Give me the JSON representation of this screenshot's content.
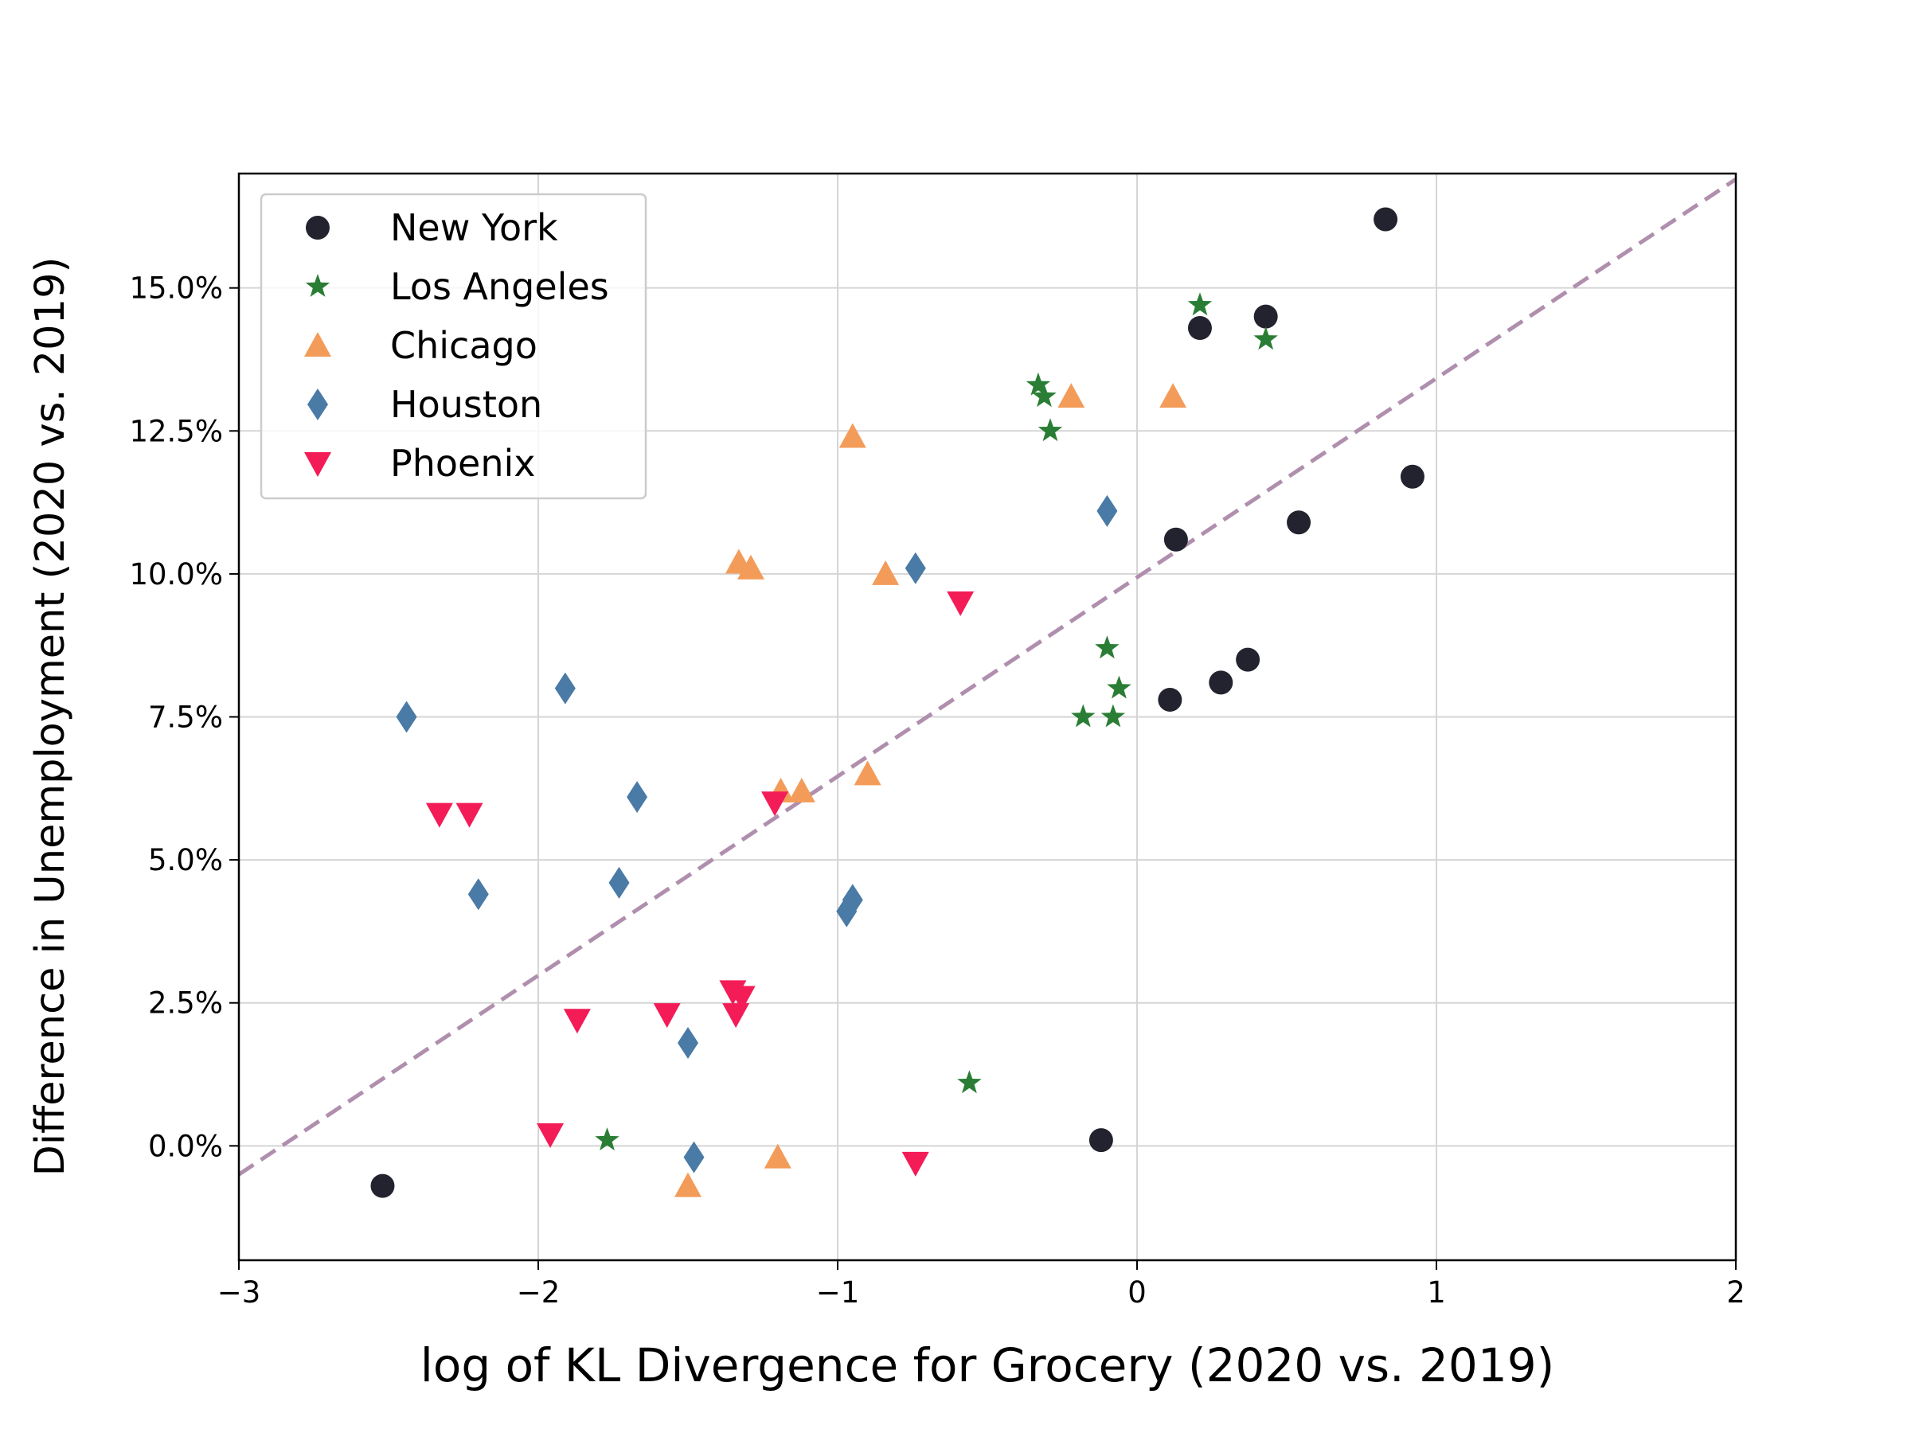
{
  "chart_data": {
    "type": "scatter",
    "title": "",
    "xlabel": "log of KL Divergence for Grocery (2020 vs. 2019)",
    "ylabel": "Difference in Unemployment (2020 vs. 2019)",
    "xlim": [
      -3,
      2
    ],
    "ylim": [
      -2.0,
      17.0
    ],
    "x_ticks": [
      -3,
      -2,
      -1,
      0,
      1,
      2
    ],
    "x_tick_labels": [
      "−3",
      "−2",
      "−1",
      "0",
      "1",
      "2"
    ],
    "y_ticks": [
      0,
      2.5,
      5,
      7.5,
      10,
      12.5,
      15
    ],
    "y_tick_labels": [
      "0.0%",
      "2.5%",
      "5.0%",
      "7.5%",
      "10.0%",
      "12.5%",
      "15.0%"
    ],
    "grid": true,
    "legend_position": "top-left",
    "fit_line": {
      "x": [
        -3,
        2
      ],
      "y": [
        -0.5,
        16.9
      ],
      "color": "#b08fae",
      "style": "dashed"
    },
    "series": [
      {
        "name": "New York",
        "marker": "circle",
        "color": "#22232e",
        "points": [
          [
            0.83,
            16.2
          ],
          [
            0.43,
            14.5
          ],
          [
            0.21,
            14.3
          ],
          [
            0.92,
            11.7
          ],
          [
            0.54,
            10.9
          ],
          [
            0.13,
            10.6
          ],
          [
            0.37,
            8.5
          ],
          [
            0.28,
            8.1
          ],
          [
            0.11,
            7.8
          ],
          [
            -0.12,
            0.1
          ],
          [
            -2.52,
            -0.7
          ]
        ]
      },
      {
        "name": "Los Angeles",
        "marker": "star",
        "color": "#2a7d34",
        "points": [
          [
            0.21,
            14.7
          ],
          [
            0.43,
            14.1
          ],
          [
            -0.33,
            13.3
          ],
          [
            -0.31,
            13.1
          ],
          [
            -0.29,
            12.5
          ],
          [
            -0.1,
            8.7
          ],
          [
            -0.06,
            8.0
          ],
          [
            -0.18,
            7.5
          ],
          [
            -0.08,
            7.5
          ],
          [
            -0.56,
            1.1
          ],
          [
            -1.77,
            0.1
          ]
        ]
      },
      {
        "name": "Chicago",
        "marker": "triangle-up",
        "color": "#f39c5a",
        "points": [
          [
            -0.22,
            13.1
          ],
          [
            0.12,
            13.1
          ],
          [
            -0.95,
            12.4
          ],
          [
            -1.33,
            10.2
          ],
          [
            -1.29,
            10.1
          ],
          [
            -0.84,
            10.0
          ],
          [
            -1.19,
            6.2
          ],
          [
            -1.12,
            6.2
          ],
          [
            -0.9,
            6.5
          ],
          [
            -1.2,
            -0.2
          ],
          [
            -1.5,
            -0.7
          ]
        ]
      },
      {
        "name": "Houston",
        "marker": "diamond",
        "color": "#4a7aa6",
        "points": [
          [
            -0.1,
            11.1
          ],
          [
            -0.74,
            10.1
          ],
          [
            -2.44,
            7.5
          ],
          [
            -1.91,
            8.0
          ],
          [
            -1.67,
            6.1
          ],
          [
            -1.73,
            4.6
          ],
          [
            -2.2,
            4.4
          ],
          [
            -0.95,
            4.3
          ],
          [
            -0.97,
            4.1
          ],
          [
            -1.5,
            1.8
          ],
          [
            -1.48,
            -0.2
          ]
        ]
      },
      {
        "name": "Phoenix",
        "marker": "triangle-down",
        "color": "#f31c57",
        "points": [
          [
            -0.59,
            9.5
          ],
          [
            -1.21,
            6.0
          ],
          [
            -2.33,
            5.8
          ],
          [
            -2.23,
            5.8
          ],
          [
            -1.35,
            2.7
          ],
          [
            -1.32,
            2.6
          ],
          [
            -1.34,
            2.3
          ],
          [
            -1.57,
            2.3
          ],
          [
            -1.87,
            2.2
          ],
          [
            -1.96,
            0.2
          ],
          [
            -0.74,
            -0.3
          ]
        ]
      }
    ]
  }
}
